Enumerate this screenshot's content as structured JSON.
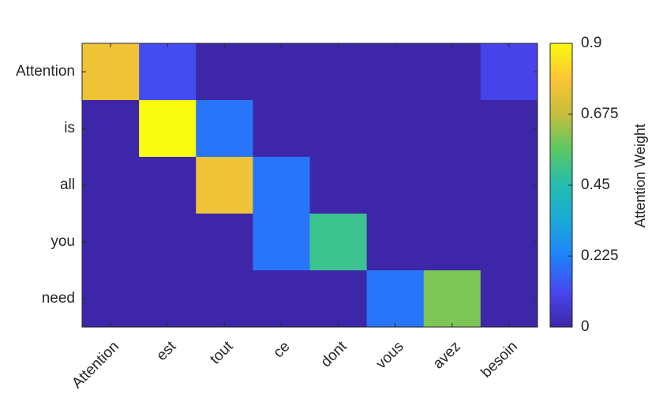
{
  "chart_data": {
    "type": "heatmap",
    "x": [
      "Attention",
      "est",
      "tout",
      "ce",
      "dont",
      "vous",
      "avez",
      "besoin"
    ],
    "y": [
      "Attention",
      "is",
      "all",
      "you",
      "need"
    ],
    "values": [
      [
        0.76,
        0.12,
        0.0,
        0.0,
        0.0,
        0.0,
        0.0,
        0.1
      ],
      [
        0.0,
        0.9,
        0.2,
        0.0,
        0.0,
        0.0,
        0.0,
        0.0
      ],
      [
        0.0,
        0.0,
        0.76,
        0.2,
        0.0,
        0.0,
        0.0,
        0.0
      ],
      [
        0.0,
        0.0,
        0.0,
        0.2,
        0.5,
        0.0,
        0.0,
        0.0
      ],
      [
        0.0,
        0.0,
        0.0,
        0.0,
        0.0,
        0.2,
        0.6,
        0.0
      ]
    ],
    "colorbar_label": "Attention Weight",
    "clim": [
      0,
      0.9
    ],
    "cticks": [
      0,
      0.225,
      0.45,
      0.675,
      0.9
    ],
    "colormap": [
      "#3e26a8",
      "#4748f0",
      "#1f82fb",
      "#1aa9d8",
      "#23bdb0",
      "#5ac864",
      "#c4be3c",
      "#fcc535",
      "#f9fb0e"
    ]
  }
}
